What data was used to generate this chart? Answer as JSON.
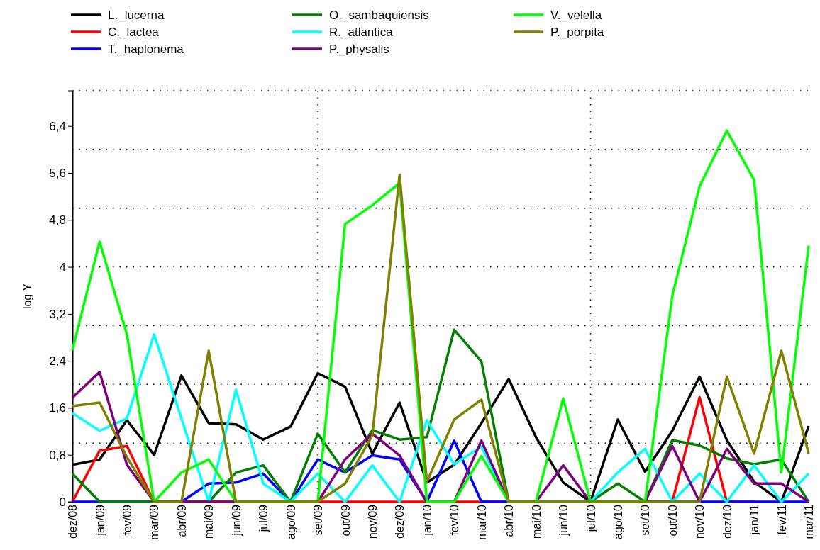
{
  "chart_data": {
    "type": "line",
    "ylabel": "log Y",
    "categories": [
      "dez/08",
      "jan/09",
      "fev/09",
      "mar/09",
      "abr/09",
      "mai/09",
      "jun/09",
      "jul/09",
      "ago/09",
      "set/09",
      "out/09",
      "nov/09",
      "dez/09",
      "jan/10",
      "fev/10",
      "mar/10",
      "abr/10",
      "mai/10",
      "jun/10",
      "jul/10",
      "ago/10",
      "set/10",
      "out/10",
      "nov/10",
      "dez/10",
      "jan/11",
      "fev/11",
      "mar/11"
    ],
    "ylim": [
      0,
      7
    ],
    "yticks": [
      0,
      {
        "value": 0.8,
        "label": "0,8"
      },
      {
        "value": 1.6,
        "label": "1,6"
      },
      {
        "value": 2.4,
        "label": "2,4"
      },
      {
        "value": 3.2,
        "label": "3,2"
      },
      4,
      {
        "value": 4.8,
        "label": "4,8"
      },
      {
        "value": 5.6,
        "label": "5,6"
      },
      {
        "value": 6.4,
        "label": "6,4"
      }
    ],
    "grid": true,
    "legend": "top left",
    "line_style": "solid",
    "marker": "none",
    "series": [
      {
        "name": "L._lucerna",
        "color": "#000000",
        "values": [
          0.63,
          0.72,
          1.39,
          0.8,
          2.15,
          1.34,
          1.32,
          1.06,
          1.28,
          2.19,
          1.96,
          0.82,
          1.69,
          0.33,
          0.63,
          1.34,
          2.09,
          1.1,
          0.33,
          0,
          1.4,
          0.51,
          1.21,
          2.13,
          1.05,
          0.34,
          0,
          1.29
        ]
      },
      {
        "name": "C._lactea",
        "color": "#ff0000",
        "values": [
          0,
          0.87,
          0.95,
          0,
          0,
          0,
          0,
          0,
          0,
          0,
          0,
          0,
          0,
          0,
          0,
          0,
          0,
          0,
          0,
          0,
          0,
          0,
          0,
          1.78,
          0,
          0,
          null,
          null
        ]
      },
      {
        "name": "T._haplonema",
        "color": "#0000ff",
        "values": [
          0,
          0,
          0,
          0,
          0,
          0.31,
          0.33,
          0.48,
          0,
          0.72,
          0.5,
          0.79,
          0.72,
          0,
          1.04,
          0,
          0,
          0,
          0,
          0,
          0,
          0,
          0,
          0,
          0,
          0,
          0,
          0
        ]
      },
      {
        "name": "O._sambaquiensis",
        "color": "#007f00",
        "values": [
          0.48,
          0,
          0,
          0,
          0,
          0,
          0.5,
          0.62,
          0,
          1.16,
          0.5,
          1.22,
          1.06,
          1.1,
          2.93,
          2.39,
          0,
          0,
          0,
          0,
          0.31,
          0,
          1.05,
          0.96,
          0.74,
          0.64,
          0.72,
          0
        ]
      },
      {
        "name": "R._atlantica",
        "color": "#00ffff",
        "values": [
          1.51,
          1.21,
          1.42,
          2.85,
          1.42,
          0,
          1.91,
          0.31,
          0,
          0.48,
          0,
          0.62,
          0,
          1.39,
          0.64,
          0.94,
          0,
          0,
          0,
          0,
          0.5,
          0.9,
          0,
          0.48,
          0,
          0.62,
          0,
          0.48
        ]
      },
      {
        "name": "P._physalis",
        "color": "#7f007f",
        "values": [
          1.77,
          2.21,
          0.63,
          0,
          0,
          0,
          0,
          0,
          0,
          0,
          0.72,
          1.16,
          0.79,
          0,
          0,
          1.04,
          0,
          0,
          0.62,
          0,
          0,
          0,
          0.95,
          0,
          0.9,
          0.31,
          0.31,
          0
        ]
      },
      {
        "name": "V._velella",
        "color": "#00ff00",
        "values": [
          2.58,
          4.43,
          2.85,
          0,
          0.5,
          0.72,
          0,
          0,
          0,
          0,
          4.73,
          5.05,
          5.43,
          0,
          0,
          0.78,
          0,
          0,
          1.76,
          0,
          0,
          0,
          3.51,
          5.37,
          6.32,
          5.48,
          0.5,
          4.36
        ]
      },
      {
        "name": "P._porpita",
        "color": "#7f7f00",
        "values": [
          1.63,
          1.69,
          0.76,
          0,
          0,
          2.57,
          0,
          0,
          0,
          0,
          0.31,
          1.13,
          5.57,
          0.34,
          1.4,
          1.74,
          0,
          0,
          0,
          0,
          0,
          0,
          0,
          0,
          2.13,
          0.82,
          2.57,
          0.82
        ]
      }
    ]
  }
}
